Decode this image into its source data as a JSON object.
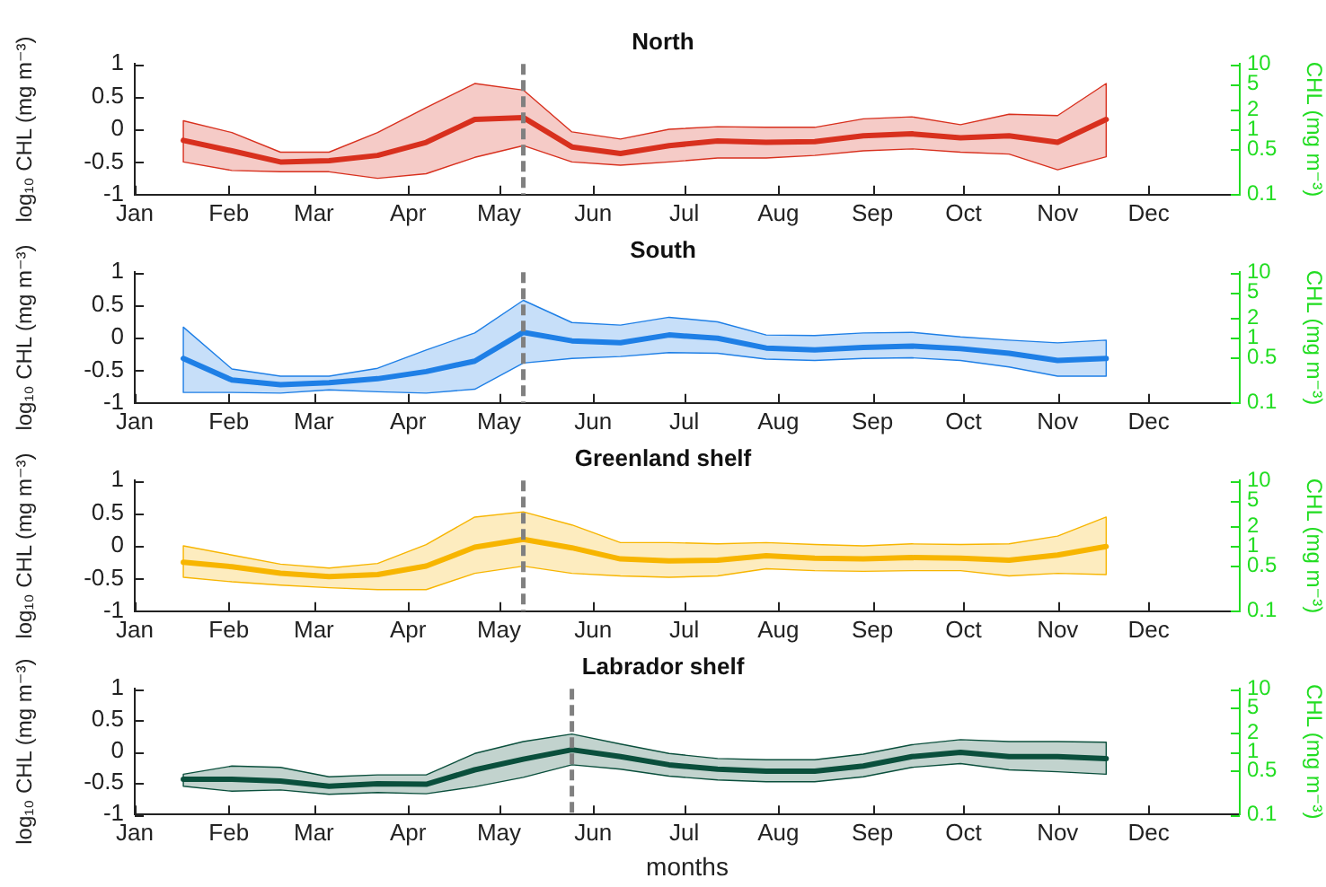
{
  "chart_data": [
    {
      "type": "line",
      "title": "North",
      "ylabel": "log₁₀ CHL (mg m⁻³)",
      "y2label": "CHL (mg m⁻³)",
      "marker": "none",
      "log": "y2",
      "x": [
        "--01-17",
        "--02-02",
        "--02-18",
        "--03-06",
        "--03-22",
        "--04-07",
        "--04-23",
        "--05-09",
        "--05-25",
        "--06-10",
        "--06-26",
        "--07-12",
        "--07-28",
        "--08-13",
        "--08-29",
        "--09-14",
        "--09-30",
        "--10-16",
        "--11-01",
        "--11-17"
      ],
      "series": [
        {
          "color": "#d8301e",
          "values": [
            -0.17,
            -0.33,
            -0.5,
            -0.48,
            -0.4,
            -0.2,
            0.15,
            0.18,
            -0.27,
            -0.37,
            -0.25,
            -0.18,
            -0.2,
            -0.19,
            -0.1,
            -0.07,
            -0.13,
            -0.1,
            -0.2,
            0.15
          ],
          "lower": [
            -0.5,
            -0.63,
            -0.65,
            -0.65,
            -0.75,
            -0.68,
            -0.43,
            -0.25,
            -0.5,
            -0.55,
            -0.5,
            -0.44,
            -0.44,
            -0.4,
            -0.33,
            -0.3,
            -0.35,
            -0.38,
            -0.62,
            -0.42
          ],
          "upper": [
            0.13,
            -0.05,
            -0.35,
            -0.35,
            -0.05,
            0.33,
            0.7,
            0.6,
            -0.04,
            -0.15,
            0,
            0.04,
            0.03,
            0.03,
            0.16,
            0.19,
            0.07,
            0.23,
            0.21,
            0.7
          ]
        }
      ],
      "xlim": [
        "--01-01",
        "--12-31"
      ],
      "xticks": [
        {
          "value": "--01-01",
          "label": "Jan"
        },
        {
          "value": "--02-01",
          "label": "Feb"
        },
        {
          "value": "--03-01",
          "label": "Mar"
        },
        {
          "value": "--04-01",
          "label": "Apr"
        },
        {
          "value": "--05-01",
          "label": "May"
        },
        {
          "value": "--06-01",
          "label": "Jun"
        },
        {
          "value": "--07-01",
          "label": "Jul"
        },
        {
          "value": "--08-01",
          "label": "Aug"
        },
        {
          "value": "--09-01",
          "label": "Sep"
        },
        {
          "value": "--10-01",
          "label": "Oct"
        },
        {
          "value": "--11-01",
          "label": "Nov"
        },
        {
          "value": "--12-01",
          "label": "Dec"
        }
      ],
      "ylim": [
        -1,
        1
      ],
      "yticks": [
        -1,
        -0.5,
        0,
        0.5,
        1
      ],
      "y2lim": [
        0.1,
        10
      ],
      "y2ticks": [
        0.1,
        0.5,
        1,
        2,
        5,
        10
      ],
      "ref_lines": [
        {
          "axis": "x",
          "value": "--05-09",
          "color": "#808080",
          "line_style": "dashed"
        }
      ]
    },
    {
      "type": "line",
      "title": "South",
      "ylabel": "log₁₀ CHL (mg m⁻³)",
      "y2label": "CHL (mg m⁻³)",
      "marker": "none",
      "log": "y2",
      "x": [
        "--01-17",
        "--02-02",
        "--02-18",
        "--03-06",
        "--03-22",
        "--04-07",
        "--04-23",
        "--05-09",
        "--05-25",
        "--06-10",
        "--06-26",
        "--07-12",
        "--07-28",
        "--08-13",
        "--08-29",
        "--09-14",
        "--09-30",
        "--10-16",
        "--11-01",
        "--11-17"
      ],
      "series": [
        {
          "color": "#1e7fe6",
          "values": [
            -0.32,
            -0.65,
            -0.72,
            -0.69,
            -0.63,
            -0.52,
            -0.36,
            0.08,
            -0.05,
            -0.08,
            0.04,
            -0.01,
            -0.16,
            -0.19,
            -0.15,
            -0.13,
            -0.17,
            -0.24,
            -0.35,
            -0.32
          ],
          "lower": [
            -0.84,
            -0.84,
            -0.85,
            -0.8,
            -0.83,
            -0.85,
            -0.79,
            -0.39,
            -0.32,
            -0.29,
            -0.23,
            -0.24,
            -0.33,
            -0.35,
            -0.32,
            -0.31,
            -0.35,
            -0.45,
            -0.59,
            -0.59
          ],
          "upper": [
            0.16,
            -0.48,
            -0.59,
            -0.59,
            -0.47,
            -0.19,
            0.07,
            0.57,
            0.23,
            0.19,
            0.31,
            0.24,
            0.04,
            0.03,
            0.07,
            0.08,
            0.01,
            -0.04,
            -0.08,
            -0.04
          ]
        }
      ],
      "xlim": [
        "--01-01",
        "--12-31"
      ],
      "xticks": [
        {
          "value": "--01-01",
          "label": "Jan"
        },
        {
          "value": "--02-01",
          "label": "Feb"
        },
        {
          "value": "--03-01",
          "label": "Mar"
        },
        {
          "value": "--04-01",
          "label": "Apr"
        },
        {
          "value": "--05-01",
          "label": "May"
        },
        {
          "value": "--06-01",
          "label": "Jun"
        },
        {
          "value": "--07-01",
          "label": "Jul"
        },
        {
          "value": "--08-01",
          "label": "Aug"
        },
        {
          "value": "--09-01",
          "label": "Sep"
        },
        {
          "value": "--10-01",
          "label": "Oct"
        },
        {
          "value": "--11-01",
          "label": "Nov"
        },
        {
          "value": "--12-01",
          "label": "Dec"
        }
      ],
      "ylim": [
        -1,
        1
      ],
      "yticks": [
        -1,
        -0.5,
        0,
        0.5,
        1
      ],
      "y2lim": [
        0.1,
        10
      ],
      "y2ticks": [
        0.1,
        0.5,
        1,
        2,
        5,
        10
      ],
      "ref_lines": [
        {
          "axis": "x",
          "value": "--05-09",
          "color": "#808080",
          "line_style": "dashed"
        }
      ]
    },
    {
      "type": "line",
      "title": "Greenland shelf",
      "ylabel": "log₁₀ CHL (mg m⁻³)",
      "y2label": "CHL (mg m⁻³)",
      "marker": "none",
      "log": "y2",
      "x": [
        "--01-17",
        "--02-02",
        "--02-18",
        "--03-06",
        "--03-22",
        "--04-07",
        "--04-23",
        "--05-09",
        "--05-25",
        "--06-10",
        "--06-26",
        "--07-12",
        "--07-28",
        "--08-13",
        "--08-29",
        "--09-14",
        "--09-30",
        "--10-16",
        "--11-01",
        "--11-17"
      ],
      "series": [
        {
          "color": "#f7b500",
          "values": [
            -0.25,
            -0.32,
            -0.42,
            -0.47,
            -0.44,
            -0.31,
            -0.02,
            0.1,
            -0.03,
            -0.2,
            -0.23,
            -0.22,
            -0.15,
            -0.19,
            -0.2,
            -0.18,
            -0.19,
            -0.22,
            -0.14,
            -0.01
          ],
          "lower": [
            -0.48,
            -0.55,
            -0.6,
            -0.64,
            -0.67,
            -0.67,
            -0.42,
            -0.31,
            -0.42,
            -0.46,
            -0.48,
            -0.46,
            -0.35,
            -0.38,
            -0.39,
            -0.38,
            -0.38,
            -0.46,
            -0.42,
            -0.44
          ],
          "upper": [
            0,
            -0.14,
            -0.28,
            -0.34,
            -0.27,
            0.02,
            0.44,
            0.52,
            0.32,
            0.05,
            0.05,
            0.03,
            0.05,
            0.02,
            0,
            0.03,
            0.02,
            0.03,
            0.15,
            0.44
          ]
        }
      ],
      "xlim": [
        "--01-01",
        "--12-31"
      ],
      "xticks": [
        {
          "value": "--01-01",
          "label": "Jan"
        },
        {
          "value": "--02-01",
          "label": "Feb"
        },
        {
          "value": "--03-01",
          "label": "Mar"
        },
        {
          "value": "--04-01",
          "label": "Apr"
        },
        {
          "value": "--05-01",
          "label": "May"
        },
        {
          "value": "--06-01",
          "label": "Jun"
        },
        {
          "value": "--07-01",
          "label": "Jul"
        },
        {
          "value": "--08-01",
          "label": "Aug"
        },
        {
          "value": "--09-01",
          "label": "Sep"
        },
        {
          "value": "--10-01",
          "label": "Oct"
        },
        {
          "value": "--11-01",
          "label": "Nov"
        },
        {
          "value": "--12-01",
          "label": "Dec"
        }
      ],
      "ylim": [
        -1,
        1
      ],
      "yticks": [
        -1,
        -0.5,
        0,
        0.5,
        1
      ],
      "y2lim": [
        0.1,
        10
      ],
      "y2ticks": [
        0.1,
        0.5,
        1,
        2,
        5,
        10
      ],
      "ref_lines": [
        {
          "axis": "x",
          "value": "--05-09",
          "color": "#808080",
          "line_style": "dashed"
        }
      ]
    },
    {
      "type": "line",
      "title": "Labrador shelf",
      "xlabel": "months",
      "ylabel": "log₁₀ CHL (mg m⁻³)",
      "y2label": "CHL (mg m⁻³)",
      "marker": "none",
      "log": "y2",
      "x": [
        "--01-17",
        "--02-02",
        "--02-18",
        "--03-06",
        "--03-22",
        "--04-07",
        "--04-23",
        "--05-09",
        "--05-25",
        "--06-10",
        "--06-26",
        "--07-12",
        "--07-28",
        "--08-13",
        "--08-29",
        "--09-14",
        "--09-30",
        "--10-16",
        "--11-01",
        "--11-17"
      ],
      "series": [
        {
          "color": "#0a4f3c",
          "values": [
            -0.44,
            -0.44,
            -0.47,
            -0.55,
            -0.51,
            -0.52,
            -0.29,
            -0.12,
            0.03,
            -0.08,
            -0.21,
            -0.28,
            -0.31,
            -0.31,
            -0.23,
            -0.08,
            -0.01,
            -0.08,
            -0.08,
            -0.11
          ],
          "lower": [
            -0.55,
            -0.63,
            -0.61,
            -0.68,
            -0.65,
            -0.67,
            -0.56,
            -0.41,
            -0.21,
            -0.28,
            -0.39,
            -0.45,
            -0.48,
            -0.48,
            -0.4,
            -0.25,
            -0.19,
            -0.29,
            -0.32,
            -0.36
          ],
          "upper": [
            -0.36,
            -0.23,
            -0.25,
            -0.4,
            -0.37,
            -0.37,
            -0.03,
            0.16,
            0.28,
            0.12,
            -0.03,
            -0.11,
            -0.13,
            -0.13,
            -0.04,
            0.11,
            0.19,
            0.16,
            0.16,
            0.15
          ]
        }
      ],
      "xlim": [
        "--01-01",
        "--12-31"
      ],
      "xticks": [
        {
          "value": "--01-01",
          "label": "Jan"
        },
        {
          "value": "--02-01",
          "label": "Feb"
        },
        {
          "value": "--03-01",
          "label": "Mar"
        },
        {
          "value": "--04-01",
          "label": "Apr"
        },
        {
          "value": "--05-01",
          "label": "May"
        },
        {
          "value": "--06-01",
          "label": "Jun"
        },
        {
          "value": "--07-01",
          "label": "Jul"
        },
        {
          "value": "--08-01",
          "label": "Aug"
        },
        {
          "value": "--09-01",
          "label": "Sep"
        },
        {
          "value": "--10-01",
          "label": "Oct"
        },
        {
          "value": "--11-01",
          "label": "Nov"
        },
        {
          "value": "--12-01",
          "label": "Dec"
        }
      ],
      "ylim": [
        -1,
        1
      ],
      "yticks": [
        -1,
        -0.5,
        0,
        0.5,
        1
      ],
      "y2lim": [
        0.1,
        10
      ],
      "y2ticks": [
        0.1,
        0.5,
        1,
        2,
        5,
        10
      ],
      "ref_lines": [
        {
          "axis": "x",
          "value": "--05-25",
          "color": "#808080",
          "line_style": "dashed"
        }
      ]
    }
  ]
}
